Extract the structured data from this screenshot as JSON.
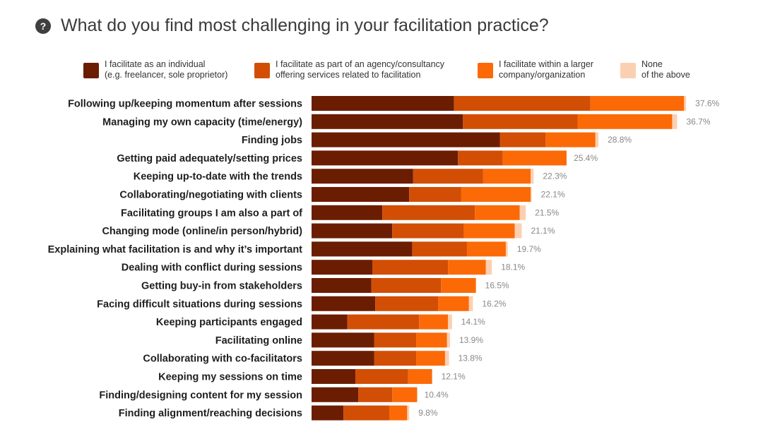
{
  "title": "What do you find most challenging in your facilitation practice?",
  "help_icon": "question-mark-icon",
  "chart_data": {
    "type": "bar",
    "orientation": "horizontal",
    "stacked": true,
    "title": "What do you find most challenging in your facilitation practice?",
    "xlim": [
      0,
      40
    ],
    "grid": false,
    "legend_position": "top",
    "categories": [
      "Following up/keeping momentum after sessions",
      "Managing my own capacity (time/energy)",
      "Finding jobs",
      "Getting paid adequately/setting prices",
      "Keeping up-to-date with the trends",
      "Collaborating/negotiating with clients",
      "Facilitating groups I am also a part of",
      "Changing mode (online/in person/hybrid)",
      "Explaining what facilitation is and why it’s important",
      "Dealing with conflict during sessions",
      "Getting buy-in from stakeholders",
      "Facing difficult situations during sessions",
      "Keeping participants engaged",
      "Facilitating online",
      "Collaborating with co-facilitators",
      "Keeping my sessions on time",
      "Finding/designing content for my session",
      "Finding alignment/reaching decisions"
    ],
    "totals": [
      37.6,
      36.7,
      28.8,
      25.4,
      22.3,
      22.1,
      21.5,
      21.1,
      19.7,
      18.1,
      16.5,
      16.2,
      14.1,
      13.9,
      13.8,
      12.1,
      10.4,
      9.8
    ],
    "total_labels": [
      "37.6%",
      "36.7%",
      "28.8%",
      "25.4%",
      "22.3%",
      "22.1%",
      "21.5%",
      "21.1%",
      "19.7%",
      "18.1%",
      "16.5%",
      "16.2%",
      "14.1%",
      "13.9%",
      "13.8%",
      "12.1%",
      "10.4%",
      "9.8%"
    ],
    "series": [
      {
        "name": "I facilitate as an individual (e.g. freelancer, sole proprietor)",
        "color": "#6b1d02",
        "values": [
          14.3,
          15.2,
          18.9,
          14.7,
          10.2,
          9.8,
          7.1,
          8.1,
          10.1,
          6.1,
          6.0,
          6.4,
          3.6,
          6.3,
          6.3,
          4.4,
          4.7,
          3.2
        ]
      },
      {
        "name": "I facilitate as part of an agency/consultancy offering services related to facilitation",
        "color": "#d24e05",
        "values": [
          13.7,
          11.5,
          4.6,
          4.5,
          7.0,
          5.2,
          9.3,
          7.2,
          5.5,
          7.6,
          7.0,
          6.3,
          7.2,
          4.2,
          4.2,
          5.3,
          3.4,
          4.6
        ]
      },
      {
        "name": "I facilitate within a larger company/organization",
        "color": "#fb6a07",
        "values": [
          9.4,
          9.5,
          5.0,
          6.4,
          4.8,
          7.0,
          4.5,
          5.1,
          3.9,
          3.8,
          3.5,
          3.1,
          2.9,
          3.1,
          2.9,
          2.4,
          2.5,
          1.8
        ]
      },
      {
        "name": "None of the above",
        "color": "#fbd0b2",
        "values": [
          0.2,
          0.5,
          0.3,
          -0.2,
          0.3,
          0.1,
          0.6,
          0.7,
          0.2,
          0.6,
          0.0,
          0.4,
          0.4,
          0.3,
          0.4,
          0.0,
          -0.2,
          0.2
        ]
      }
    ]
  },
  "legend": [
    {
      "line1": "I facilitate as an individual",
      "line2": "(e.g. freelancer, sole proprietor)",
      "color": "#6b1d02"
    },
    {
      "line1": "I facilitate as part of an agency/consultancy",
      "line2": "offering services related to facilitation",
      "color": "#d24e05"
    },
    {
      "line1": "I facilitate within a larger",
      "line2": "company/organization",
      "color": "#fb6a07"
    },
    {
      "line1": "None",
      "line2": "of the above",
      "color": "#fbd0b2"
    }
  ]
}
